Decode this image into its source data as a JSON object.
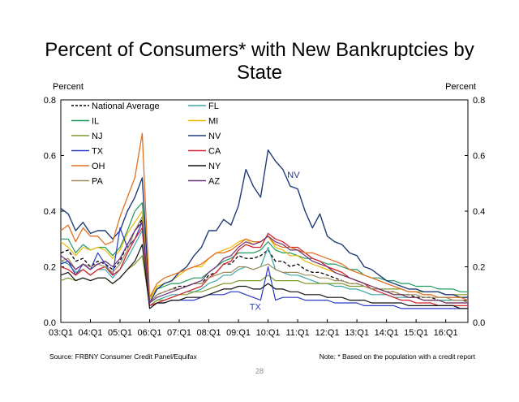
{
  "slide": {
    "title_line1": "Percent of Consumers* with New Bankruptcies by",
    "title_line2": "State",
    "source": "Source: FRBNY Consumer Credit Panel/Equifax",
    "note": "Note: * Based on the population with a credit report",
    "page_number": "28"
  },
  "chart_data": {
    "type": "line",
    "title": "Percent of Consumers* with New Bankruptcies by State",
    "ylabel_left": "Percent",
    "ylabel_right": "Percent",
    "xlabel": "",
    "ylim": [
      0,
      0.8
    ],
    "yticks": [
      "0.0",
      "0.2",
      "0.4",
      "0.6",
      "0.8"
    ],
    "xlim": [
      0,
      55
    ],
    "xticks": [
      {
        "label": "03:Q1",
        "x": 0
      },
      {
        "label": "04:Q1",
        "x": 4
      },
      {
        "label": "05:Q1",
        "x": 8
      },
      {
        "label": "06:Q1",
        "x": 12
      },
      {
        "label": "07:Q1",
        "x": 16
      },
      {
        "label": "08:Q1",
        "x": 20
      },
      {
        "label": "09:Q1",
        "x": 24
      },
      {
        "label": "10:Q1",
        "x": 28
      },
      {
        "label": "11:Q1",
        "x": 32
      },
      {
        "label": "12:Q1",
        "x": 36
      },
      {
        "label": "13:Q1",
        "x": 40
      },
      {
        "label": "14:Q1",
        "x": 44
      },
      {
        "label": "15:Q1",
        "x": 48
      },
      {
        "label": "16:Q1",
        "x": 52
      }
    ],
    "annotations": [
      {
        "text": "NV",
        "x": 30.6,
        "y": 0.52,
        "color": "#1f3b7a"
      },
      {
        "text": "TX",
        "x": 25.5,
        "y": 0.045,
        "color": "#2a3ac8"
      }
    ],
    "legend_position": "top-left",
    "series": [
      {
        "name": "National Average",
        "color": "#000000",
        "dash": true,
        "width": 1.3,
        "values": [
          0.25,
          0.26,
          0.22,
          0.23,
          0.2,
          0.22,
          0.21,
          0.19,
          0.22,
          0.28,
          0.33,
          0.37,
          0.07,
          0.1,
          0.11,
          0.12,
          0.13,
          0.13,
          0.14,
          0.14,
          0.17,
          0.18,
          0.21,
          0.21,
          0.24,
          0.23,
          0.23,
          0.24,
          0.26,
          0.22,
          0.22,
          0.2,
          0.21,
          0.19,
          0.18,
          0.18,
          0.17,
          0.16,
          0.15,
          0.14,
          0.14,
          0.13,
          0.12,
          0.12,
          0.11,
          0.11,
          0.1,
          0.1,
          0.09,
          0.09,
          0.09,
          0.08,
          0.08,
          0.08,
          0.08,
          0.075
        ]
      },
      {
        "name": "FL",
        "color": "#3aa6a6",
        "width": 1.2,
        "values": [
          0.22,
          0.21,
          0.18,
          0.19,
          0.17,
          0.19,
          0.19,
          0.16,
          0.19,
          0.23,
          0.28,
          0.33,
          0.06,
          0.08,
          0.09,
          0.1,
          0.1,
          0.11,
          0.11,
          0.12,
          0.14,
          0.15,
          0.17,
          0.17,
          0.19,
          0.2,
          0.19,
          0.2,
          0.27,
          0.19,
          0.18,
          0.17,
          0.17,
          0.16,
          0.15,
          0.14,
          0.14,
          0.13,
          0.13,
          0.12,
          0.12,
          0.11,
          0.1,
          0.1,
          0.1,
          0.09,
          0.09,
          0.09,
          0.09,
          0.08,
          0.08,
          0.08,
          0.08,
          0.08,
          0.08,
          0.08
        ]
      },
      {
        "name": "IL",
        "color": "#1d9a5c",
        "width": 1.2,
        "values": [
          0.3,
          0.3,
          0.25,
          0.28,
          0.26,
          0.27,
          0.27,
          0.24,
          0.27,
          0.33,
          0.4,
          0.43,
          0.09,
          0.12,
          0.13,
          0.14,
          0.14,
          0.15,
          0.16,
          0.16,
          0.18,
          0.2,
          0.22,
          0.23,
          0.25,
          0.25,
          0.25,
          0.26,
          0.29,
          0.26,
          0.25,
          0.25,
          0.24,
          0.23,
          0.23,
          0.22,
          0.21,
          0.21,
          0.2,
          0.19,
          0.19,
          0.17,
          0.16,
          0.16,
          0.15,
          0.15,
          0.14,
          0.14,
          0.13,
          0.13,
          0.13,
          0.12,
          0.12,
          0.12,
          0.11,
          0.11
        ]
      },
      {
        "name": "MI",
        "color": "#f0b800",
        "width": 1.2,
        "values": [
          0.29,
          0.27,
          0.24,
          0.27,
          0.26,
          0.27,
          0.26,
          0.23,
          0.26,
          0.32,
          0.36,
          0.4,
          0.08,
          0.13,
          0.14,
          0.15,
          0.17,
          0.19,
          0.2,
          0.2,
          0.23,
          0.25,
          0.26,
          0.27,
          0.29,
          0.3,
          0.28,
          0.29,
          0.31,
          0.27,
          0.26,
          0.24,
          0.24,
          0.22,
          0.21,
          0.2,
          0.19,
          0.18,
          0.17,
          0.16,
          0.15,
          0.14,
          0.13,
          0.12,
          0.11,
          0.1,
          0.1,
          0.09,
          0.09,
          0.08,
          0.08,
          0.08,
          0.07,
          0.07,
          0.07,
          0.07
        ]
      },
      {
        "name": "NJ",
        "color": "#7d9a2c",
        "width": 1.2,
        "values": [
          0.15,
          0.16,
          0.15,
          0.16,
          0.15,
          0.16,
          0.16,
          0.14,
          0.16,
          0.19,
          0.21,
          0.24,
          0.06,
          0.08,
          0.08,
          0.09,
          0.1,
          0.1,
          0.11,
          0.11,
          0.12,
          0.13,
          0.14,
          0.14,
          0.15,
          0.15,
          0.15,
          0.15,
          0.17,
          0.15,
          0.15,
          0.15,
          0.15,
          0.14,
          0.14,
          0.14,
          0.14,
          0.14,
          0.14,
          0.13,
          0.13,
          0.13,
          0.12,
          0.12,
          0.12,
          0.12,
          0.12,
          0.11,
          0.11,
          0.11,
          0.11,
          0.11,
          0.1,
          0.1,
          0.1,
          0.1
        ]
      },
      {
        "name": "NV",
        "color": "#1f3b7a",
        "width": 1.4,
        "values": [
          0.41,
          0.39,
          0.33,
          0.36,
          0.32,
          0.33,
          0.33,
          0.3,
          0.33,
          0.4,
          0.45,
          0.52,
          0.07,
          0.12,
          0.14,
          0.15,
          0.18,
          0.2,
          0.24,
          0.27,
          0.33,
          0.33,
          0.37,
          0.35,
          0.42,
          0.55,
          0.49,
          0.45,
          0.62,
          0.58,
          0.55,
          0.49,
          0.48,
          0.4,
          0.34,
          0.39,
          0.31,
          0.29,
          0.28,
          0.25,
          0.24,
          0.2,
          0.19,
          0.17,
          0.15,
          0.14,
          0.13,
          0.12,
          0.12,
          0.11,
          0.11,
          0.11,
          0.1,
          0.1,
          0.09,
          0.09
        ]
      },
      {
        "name": "TX",
        "color": "#2a3ac8",
        "width": 1.2,
        "values": [
          0.21,
          0.22,
          0.17,
          0.21,
          0.19,
          0.25,
          0.21,
          0.17,
          0.34,
          0.27,
          0.3,
          0.36,
          0.06,
          0.07,
          0.07,
          0.08,
          0.08,
          0.08,
          0.08,
          0.09,
          0.1,
          0.1,
          0.1,
          0.11,
          0.11,
          0.1,
          0.09,
          0.08,
          0.2,
          0.08,
          0.09,
          0.09,
          0.09,
          0.08,
          0.08,
          0.08,
          0.08,
          0.07,
          0.07,
          0.07,
          0.07,
          0.06,
          0.06,
          0.06,
          0.06,
          0.06,
          0.05,
          0.05,
          0.05,
          0.05,
          0.05,
          0.05,
          0.05,
          0.05,
          0.05,
          0.05
        ]
      },
      {
        "name": "CA",
        "color": "#d4242c",
        "width": 1.3,
        "values": [
          0.2,
          0.19,
          0.17,
          0.19,
          0.17,
          0.19,
          0.2,
          0.17,
          0.19,
          0.25,
          0.3,
          0.34,
          0.06,
          0.07,
          0.08,
          0.09,
          0.1,
          0.11,
          0.12,
          0.13,
          0.16,
          0.18,
          0.21,
          0.22,
          0.26,
          0.28,
          0.27,
          0.27,
          0.32,
          0.3,
          0.29,
          0.27,
          0.27,
          0.25,
          0.23,
          0.22,
          0.2,
          0.19,
          0.18,
          0.16,
          0.15,
          0.14,
          0.12,
          0.11,
          0.1,
          0.09,
          0.08,
          0.08,
          0.07,
          0.07,
          0.07,
          0.06,
          0.06,
          0.06,
          0.06,
          0.06
        ]
      },
      {
        "name": "OH",
        "color": "#e07020",
        "width": 1.3,
        "values": [
          0.33,
          0.35,
          0.29,
          0.34,
          0.31,
          0.31,
          0.28,
          0.29,
          0.38,
          0.45,
          0.52,
          0.68,
          0.09,
          0.14,
          0.16,
          0.17,
          0.18,
          0.19,
          0.2,
          0.21,
          0.23,
          0.25,
          0.25,
          0.26,
          0.28,
          0.3,
          0.29,
          0.29,
          0.31,
          0.28,
          0.27,
          0.27,
          0.26,
          0.25,
          0.25,
          0.24,
          0.23,
          0.22,
          0.21,
          0.19,
          0.18,
          0.17,
          0.16,
          0.15,
          0.14,
          0.13,
          0.12,
          0.11,
          0.11,
          0.1,
          0.1,
          0.09,
          0.09,
          0.09,
          0.09,
          0.08
        ]
      },
      {
        "name": "NY",
        "color": "#111111",
        "width": 1.2,
        "values": [
          0.17,
          0.18,
          0.15,
          0.16,
          0.15,
          0.16,
          0.16,
          0.14,
          0.16,
          0.19,
          0.22,
          0.28,
          0.05,
          0.07,
          0.07,
          0.08,
          0.08,
          0.09,
          0.09,
          0.09,
          0.1,
          0.11,
          0.12,
          0.12,
          0.13,
          0.13,
          0.12,
          0.12,
          0.14,
          0.12,
          0.12,
          0.11,
          0.11,
          0.1,
          0.1,
          0.1,
          0.09,
          0.09,
          0.09,
          0.08,
          0.08,
          0.08,
          0.07,
          0.07,
          0.07,
          0.07,
          0.07,
          0.06,
          0.06,
          0.06,
          0.06,
          0.06,
          0.06,
          0.06,
          0.05,
          0.05
        ]
      },
      {
        "name": "PA",
        "color": "#a08c5a",
        "width": 1.2,
        "values": [
          0.22,
          0.23,
          0.19,
          0.21,
          0.2,
          0.21,
          0.2,
          0.18,
          0.21,
          0.26,
          0.33,
          0.38,
          0.07,
          0.1,
          0.11,
          0.12,
          0.12,
          0.13,
          0.14,
          0.14,
          0.16,
          0.17,
          0.18,
          0.18,
          0.2,
          0.2,
          0.19,
          0.2,
          0.21,
          0.19,
          0.18,
          0.18,
          0.18,
          0.17,
          0.17,
          0.16,
          0.16,
          0.15,
          0.15,
          0.14,
          0.14,
          0.13,
          0.12,
          0.12,
          0.11,
          0.11,
          0.1,
          0.1,
          0.1,
          0.09,
          0.09,
          0.09,
          0.09,
          0.08,
          0.08,
          0.08
        ]
      },
      {
        "name": "AZ",
        "color": "#6a2e7a",
        "width": 1.2,
        "values": [
          0.24,
          0.22,
          0.19,
          0.21,
          0.19,
          0.21,
          0.22,
          0.2,
          0.23,
          0.28,
          0.33,
          0.36,
          0.07,
          0.09,
          0.1,
          0.11,
          0.12,
          0.13,
          0.14,
          0.15,
          0.18,
          0.2,
          0.23,
          0.24,
          0.27,
          0.29,
          0.28,
          0.29,
          0.31,
          0.29,
          0.28,
          0.26,
          0.26,
          0.24,
          0.22,
          0.21,
          0.2,
          0.18,
          0.17,
          0.16,
          0.15,
          0.14,
          0.13,
          0.12,
          0.11,
          0.1,
          0.1,
          0.09,
          0.09,
          0.08,
          0.08,
          0.08,
          0.07,
          0.07,
          0.07,
          0.07
        ]
      }
    ]
  }
}
